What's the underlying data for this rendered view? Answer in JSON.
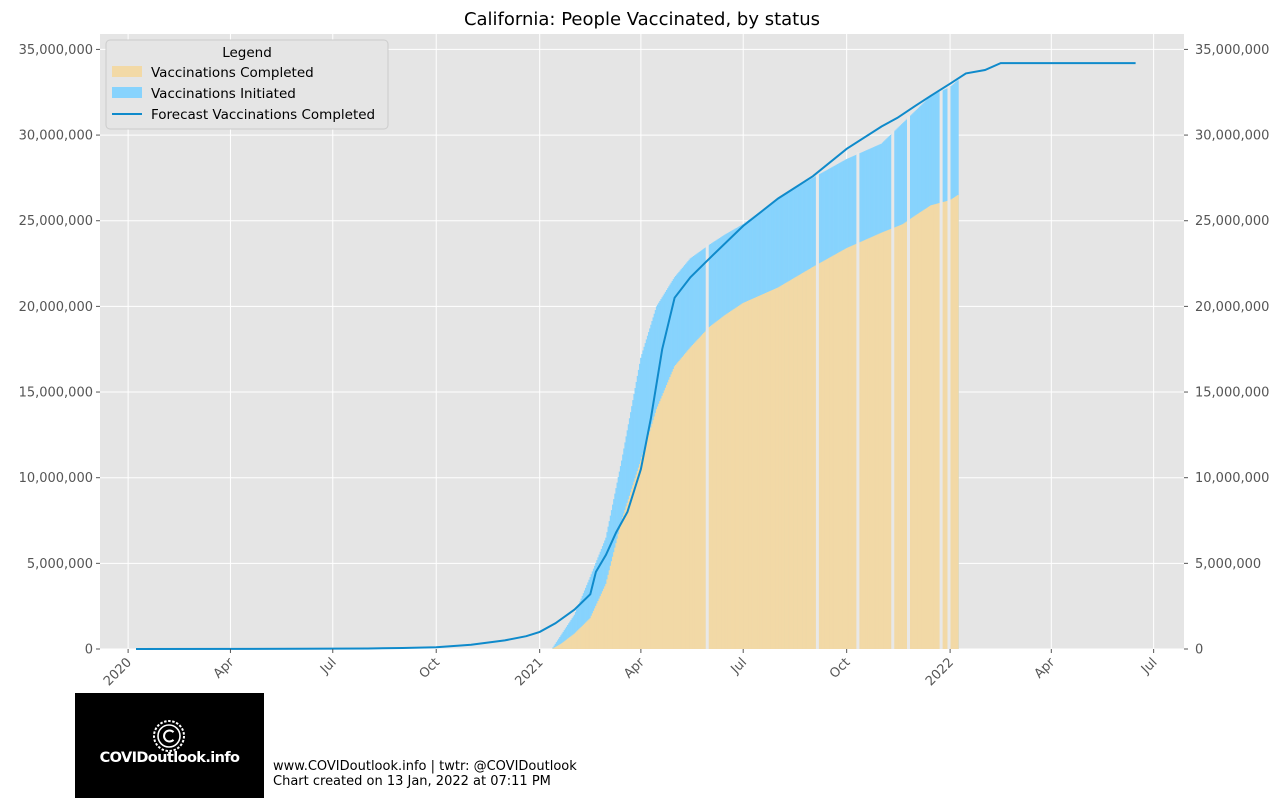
{
  "chart_data": {
    "type": "bar",
    "title": "California: People Vaccinated, by status",
    "x_tick_labels": [
      "2020",
      "Apr",
      "Jul",
      "Oct",
      "2021",
      "Apr",
      "Jul",
      "Oct",
      "2022",
      "Apr",
      "Jul"
    ],
    "x_tick_dates": [
      "2020-01-01",
      "2020-04-01",
      "2020-07-01",
      "2020-10-01",
      "2021-01-01",
      "2021-04-01",
      "2021-07-01",
      "2021-10-01",
      "2022-01-01",
      "2022-04-01",
      "2022-07-01"
    ],
    "xlim": [
      "2019-12-07",
      "2022-07-28"
    ],
    "ylim": [
      0,
      35900000
    ],
    "y_ticks": [
      0,
      5000000,
      10000000,
      15000000,
      20000000,
      25000000,
      30000000,
      35000000
    ],
    "y_tick_labels": [
      "0",
      "5,000,000",
      "10,000,000",
      "15,000,000",
      "20,000,000",
      "25,000,000",
      "30,000,000",
      "35,000,000"
    ],
    "secondary_y_axis": true,
    "grid": true,
    "legend": {
      "title": "Legend",
      "placement": "top-left",
      "entries": [
        "Vaccinations Completed",
        "Vaccinations Initiated",
        "Forecast Vaccinations Completed"
      ]
    },
    "series": [
      {
        "name": "Vaccinations Completed",
        "type": "bar",
        "color": "#f2d9a6",
        "points": [
          [
            "2021-01-12",
            0
          ],
          [
            "2021-01-20",
            300000
          ],
          [
            "2021-02-01",
            900000
          ],
          [
            "2021-02-15",
            1800000
          ],
          [
            "2021-03-01",
            3800000
          ],
          [
            "2021-03-15",
            7500000
          ],
          [
            "2021-04-01",
            11000000
          ],
          [
            "2021-04-15",
            14000000
          ],
          [
            "2021-05-01",
            16500000
          ],
          [
            "2021-05-15",
            17600000
          ],
          [
            "2021-06-01",
            18800000
          ],
          [
            "2021-06-15",
            19500000
          ],
          [
            "2021-07-01",
            20200000
          ],
          [
            "2021-08-01",
            21100000
          ],
          [
            "2021-09-01",
            22300000
          ],
          [
            "2021-10-01",
            23400000
          ],
          [
            "2021-11-01",
            24300000
          ],
          [
            "2021-11-20",
            24800000
          ],
          [
            "2021-12-01",
            25300000
          ],
          [
            "2021-12-15",
            25900000
          ],
          [
            "2022-01-01",
            26200000
          ],
          [
            "2022-01-08",
            26500000
          ]
        ],
        "gaps": [
          "2021-05-30",
          "2021-09-05",
          "2021-10-11",
          "2021-11-11",
          "2021-11-25",
          "2021-12-24",
          "2021-12-31"
        ]
      },
      {
        "name": "Vaccinations Initiated",
        "type": "bar",
        "color": "#87d3fd",
        "points": [
          [
            "2021-01-12",
            0
          ],
          [
            "2021-01-20",
            800000
          ],
          [
            "2021-02-01",
            2000000
          ],
          [
            "2021-02-15",
            4200000
          ],
          [
            "2021-03-01",
            6500000
          ],
          [
            "2021-03-15",
            11000000
          ],
          [
            "2021-04-01",
            17000000
          ],
          [
            "2021-04-15",
            20000000
          ],
          [
            "2021-05-01",
            21700000
          ],
          [
            "2021-05-15",
            22800000
          ],
          [
            "2021-06-01",
            23600000
          ],
          [
            "2021-06-15",
            24200000
          ],
          [
            "2021-07-01",
            24800000
          ],
          [
            "2021-08-01",
            26300000
          ],
          [
            "2021-09-01",
            27500000
          ],
          [
            "2021-10-01",
            28600000
          ],
          [
            "2021-11-01",
            29500000
          ],
          [
            "2021-11-20",
            30700000
          ],
          [
            "2021-12-01",
            31400000
          ],
          [
            "2021-12-15",
            32300000
          ],
          [
            "2022-01-01",
            32800000
          ],
          [
            "2022-01-08",
            33200000
          ]
        ]
      },
      {
        "name": "Forecast Vaccinations Completed",
        "type": "line",
        "color": "#0f8acb",
        "points": [
          [
            "2020-01-08",
            0
          ],
          [
            "2020-06-01",
            10000
          ],
          [
            "2020-08-01",
            30000
          ],
          [
            "2020-09-01",
            60000
          ],
          [
            "2020-10-01",
            100000
          ],
          [
            "2020-11-01",
            250000
          ],
          [
            "2020-12-01",
            500000
          ],
          [
            "2020-12-20",
            750000
          ],
          [
            "2021-01-01",
            1000000
          ],
          [
            "2021-01-15",
            1500000
          ],
          [
            "2021-02-01",
            2300000
          ],
          [
            "2021-02-15",
            3200000
          ],
          [
            "2021-02-20",
            4500000
          ],
          [
            "2021-03-01",
            5500000
          ],
          [
            "2021-03-10",
            6800000
          ],
          [
            "2021-03-20",
            8000000
          ],
          [
            "2021-04-01",
            10500000
          ],
          [
            "2021-04-10",
            13500000
          ],
          [
            "2021-04-20",
            17500000
          ],
          [
            "2021-05-01",
            20500000
          ],
          [
            "2021-05-15",
            21700000
          ],
          [
            "2021-06-01",
            22800000
          ],
          [
            "2021-07-01",
            24700000
          ],
          [
            "2021-08-01",
            26300000
          ],
          [
            "2021-09-01",
            27600000
          ],
          [
            "2021-10-01",
            29200000
          ],
          [
            "2021-11-01",
            30500000
          ],
          [
            "2021-11-15",
            31000000
          ],
          [
            "2021-12-01",
            31700000
          ],
          [
            "2021-12-15",
            32300000
          ],
          [
            "2022-01-01",
            33000000
          ],
          [
            "2022-01-15",
            33600000
          ],
          [
            "2022-02-01",
            33800000
          ],
          [
            "2022-02-15",
            34200000
          ],
          [
            "2022-06-15",
            34200000
          ]
        ]
      }
    ]
  },
  "logo": {
    "text": "COVIDoutlook.info",
    "icon": "copyright-seal-icon"
  },
  "footer": {
    "line1": "www.COVIDoutlook.info | twtr: @COVIDoutlook",
    "line2": "Chart created on 13 Jan, 2022 at 07:11 PM"
  }
}
